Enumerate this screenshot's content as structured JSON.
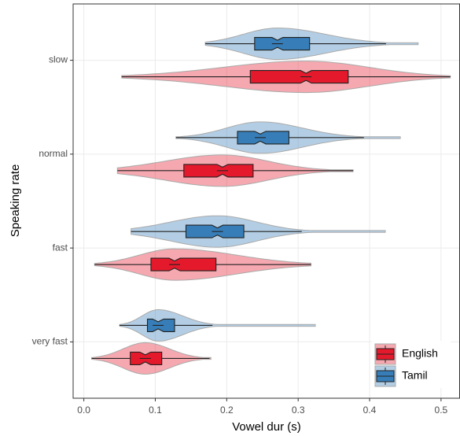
{
  "chart_data": {
    "type": "violin",
    "xlabel": "Vowel dur (s)",
    "ylabel": "Speaking rate",
    "categories": [
      "very fast",
      "fast",
      "normal",
      "slow"
    ],
    "xlim": [
      -0.015,
      0.526
    ],
    "xticks": [
      {
        "value": 0,
        "label": "0.0"
      },
      0.1,
      0.2,
      0.3,
      0.4,
      0.5
    ],
    "grid": true,
    "legend": "bottom-right",
    "series": [
      {
        "name": "English",
        "color": "#e41a2c",
        "violin_low": [
          0.011,
          0.015,
          0.047,
          0.053
        ],
        "whisker_low": [
          0.011,
          0.015,
          0.047,
          0.053
        ],
        "q1": [
          0.065,
          0.094,
          0.14,
          0.233
        ],
        "median": [
          0.086,
          0.127,
          0.194,
          0.311
        ],
        "q3": [
          0.109,
          0.185,
          0.237,
          0.37
        ],
        "whisker_high": [
          0.176,
          0.318,
          0.377,
          0.513
        ],
        "violin_high": [
          0.178,
          0.318,
          0.377,
          0.513
        ]
      },
      {
        "name": "Tamil",
        "color": "#377eb8",
        "violin_low": [
          0.05,
          0.066,
          0.129,
          0.17
        ],
        "whisker_low": [
          0.05,
          0.066,
          0.129,
          0.17
        ],
        "q1": [
          0.089,
          0.143,
          0.215,
          0.239
        ],
        "median": [
          0.104,
          0.187,
          0.247,
          0.271
        ],
        "q3": [
          0.127,
          0.224,
          0.287,
          0.316
        ],
        "whisker_high": [
          0.18,
          0.305,
          0.392,
          0.423
        ],
        "violin_high": [
          0.324,
          0.422,
          0.443,
          0.468
        ]
      }
    ]
  }
}
